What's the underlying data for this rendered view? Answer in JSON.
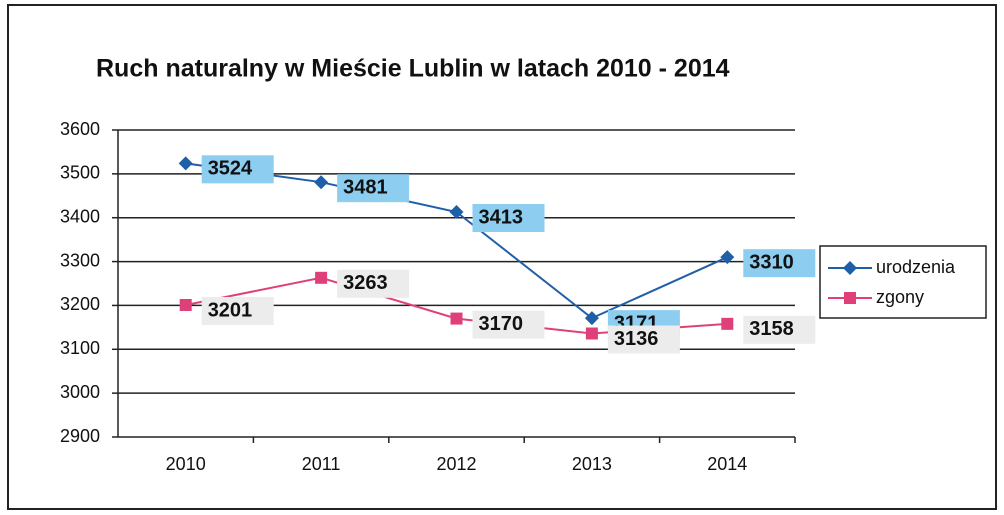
{
  "chart_data": {
    "type": "line",
    "title": "Ruch naturalny w Mieście Lublin w latach 2010 - 2014",
    "categories": [
      "2010",
      "2011",
      "2012",
      "2013",
      "2014"
    ],
    "series": [
      {
        "name": "urodzenia",
        "color": "#1f5fa8",
        "marker": "diamond",
        "values": [
          3524,
          3481,
          3413,
          3171,
          3310
        ]
      },
      {
        "name": "zgony",
        "color": "#e0407a",
        "marker": "square",
        "values": [
          3201,
          3263,
          3170,
          3136,
          3158
        ]
      }
    ],
    "ylim": [
      2900,
      3600
    ],
    "yticks": [
      2900,
      3000,
      3100,
      3200,
      3300,
      3400,
      3500,
      3600
    ],
    "grid": true,
    "legend": "right"
  }
}
